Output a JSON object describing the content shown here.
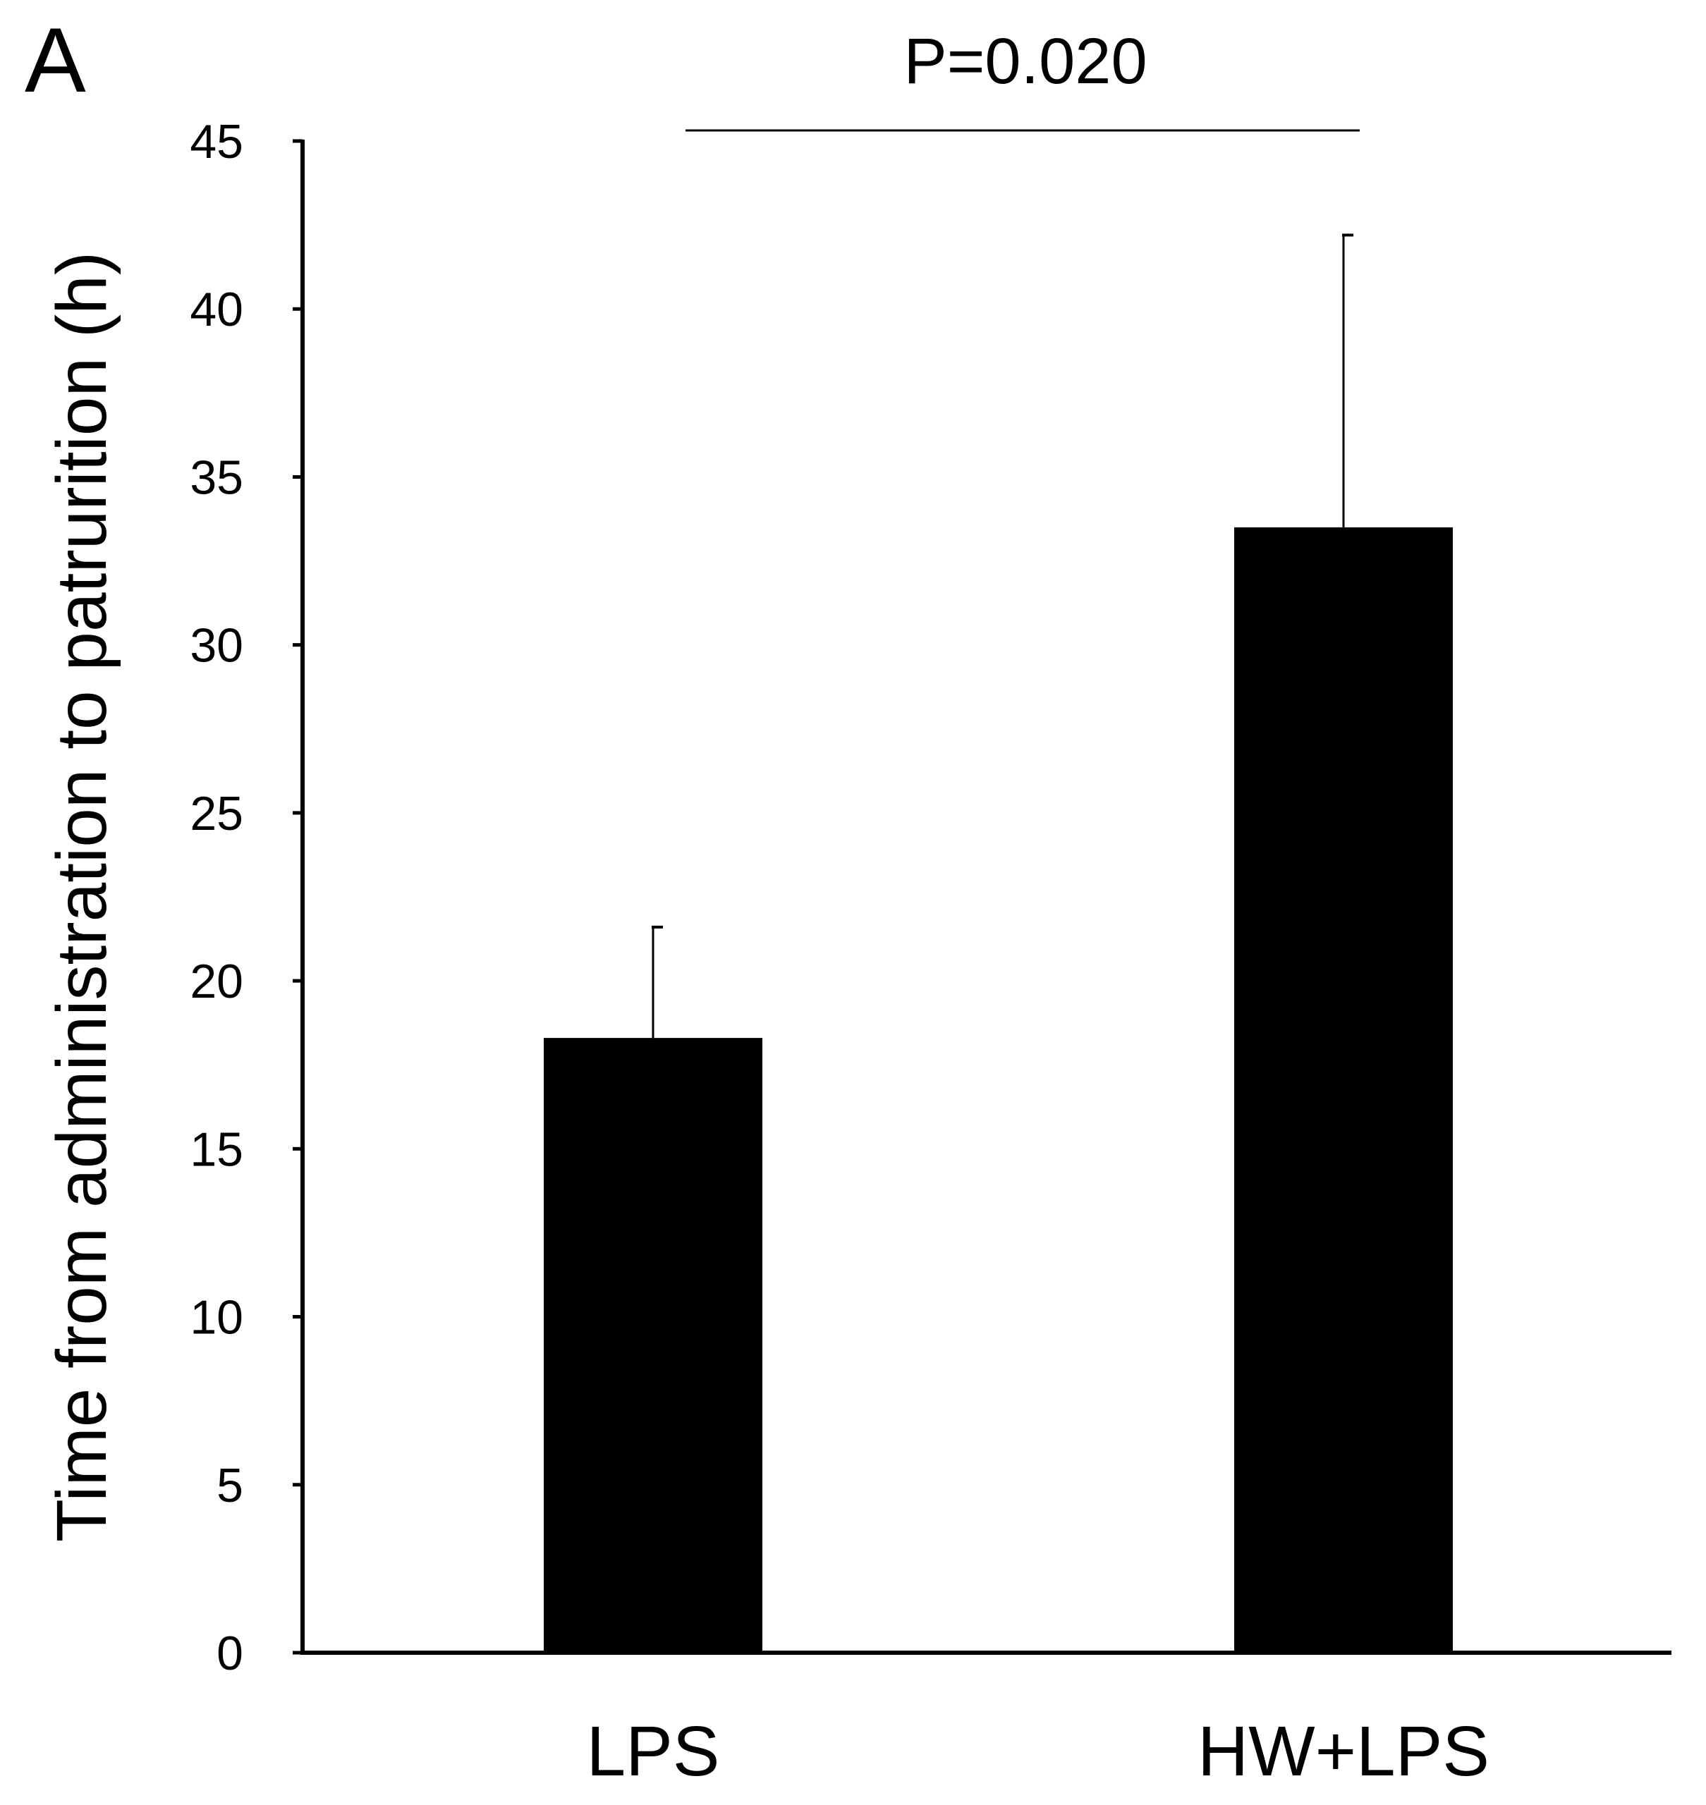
{
  "panel_label": "A",
  "chart_data": {
    "type": "bar",
    "categories": [
      "LPS",
      "HW+LPS"
    ],
    "values": [
      18.3,
      33.5
    ],
    "error_upper": [
      21.6,
      42.2
    ],
    "ylabel": "Time from administration to patrurition (h)",
    "xlabel": "",
    "ylim": [
      0,
      45
    ],
    "yticks": [
      "0",
      "5",
      "10",
      "15",
      "20",
      "25",
      "30",
      "35",
      "40",
      "45"
    ],
    "grid": false,
    "bar_color": "#000000",
    "annotation": "P=0.020"
  }
}
